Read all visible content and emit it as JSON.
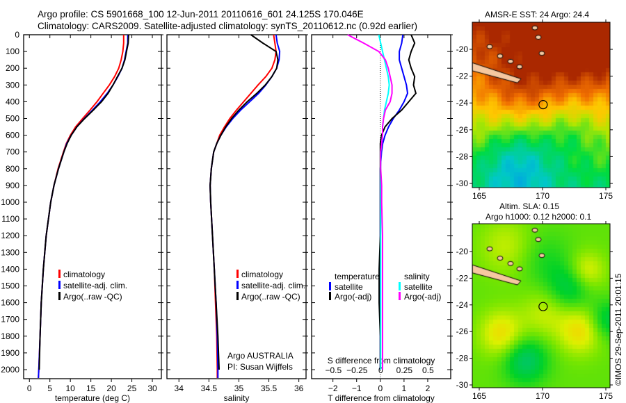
{
  "header": {
    "line1": "Argo profile: CS 5901668_100 12-Jun-2011 20110616_601 24.125S 170.046E",
    "line2": "Climatology: CARS2009. Satellite-adjusted climatology: synTS_20110612.nc (0.92d earlier)"
  },
  "colors": {
    "climatology": "#ff0000",
    "satellite": "#0000ff",
    "argo": "#000000",
    "sal_satellite": "#00ffff",
    "sal_argo": "#ff00ff"
  },
  "chart_data": [
    {
      "type": "line",
      "name": "temperature",
      "xlabel": "temperature (deg C)",
      "xlim": [
        -1.4,
        32.2
      ],
      "ylim": [
        2054,
        0
      ],
      "xticks": [
        0,
        5,
        10,
        15,
        20,
        25,
        30
      ],
      "yticks": [
        0,
        100,
        200,
        300,
        400,
        500,
        600,
        700,
        800,
        900,
        1000,
        1100,
        1200,
        1300,
        1400,
        1500,
        1600,
        1700,
        1800,
        1900,
        2000
      ],
      "depth": [
        0,
        50,
        100,
        150,
        200,
        250,
        300,
        350,
        400,
        450,
        500,
        550,
        600,
        650,
        700,
        800,
        900,
        1000,
        1200,
        1400,
        1600,
        1800,
        2000,
        2050
      ],
      "series": [
        {
          "name": "climatology",
          "color": "#ff0000",
          "values": [
            23.0,
            23.0,
            22.8,
            22.4,
            21.8,
            20.8,
            19.5,
            18.0,
            16.5,
            14.8,
            13.0,
            11.3,
            10.0,
            9.0,
            8.3,
            7.0,
            6.0,
            5.2,
            4.1,
            3.4,
            2.9,
            2.6,
            2.3,
            2.2
          ]
        },
        {
          "name": "satellite-adj. clim.",
          "color": "#0000ff",
          "values": [
            24.0,
            24.0,
            23.6,
            23.2,
            22.6,
            21.6,
            20.4,
            19.0,
            17.3,
            15.4,
            13.4,
            11.6,
            10.2,
            9.1,
            8.4,
            7.1,
            6.0,
            5.2,
            4.1,
            3.4,
            2.9,
            2.6,
            2.3,
            2.2
          ]
        },
        {
          "name": "Argo(..raw -QC)",
          "color": "#000000",
          "values": [
            24.2,
            24.1,
            23.7,
            23.3,
            22.6,
            21.5,
            20.4,
            19.2,
            17.6,
            15.6,
            13.5,
            11.6,
            10.2,
            9.2,
            8.4,
            7.1,
            6.0,
            5.2,
            4.1,
            3.4,
            2.9,
            2.6,
            2.4,
            null
          ]
        }
      ],
      "legend": [
        "climatology",
        "satellite-adj. clim.",
        "Argo(..raw -QC)"
      ]
    },
    {
      "type": "line",
      "name": "salinity",
      "xlabel": "salinity",
      "xlim": [
        33.8,
        36.12
      ],
      "ylim": [
        2054,
        0
      ],
      "xticks": [
        34,
        34.5,
        35,
        35.5,
        36
      ],
      "depth": [
        0,
        50,
        100,
        150,
        200,
        250,
        300,
        350,
        400,
        450,
        500,
        550,
        600,
        650,
        700,
        800,
        900,
        1000,
        1200,
        1400,
        1600,
        1800,
        2000,
        2050
      ],
      "series": [
        {
          "name": "climatology",
          "color": "#ff0000",
          "values": [
            35.58,
            35.6,
            35.62,
            35.6,
            35.55,
            35.45,
            35.32,
            35.2,
            35.08,
            34.96,
            34.85,
            34.76,
            34.68,
            34.63,
            34.58,
            34.54,
            34.52,
            34.53,
            34.56,
            34.59,
            34.61,
            34.63,
            34.64,
            34.64
          ]
        },
        {
          "name": "satellite-adj. clim.",
          "color": "#0000ff",
          "values": [
            35.62,
            35.64,
            35.68,
            35.67,
            35.63,
            35.55,
            35.45,
            35.33,
            35.18,
            35.03,
            34.9,
            34.79,
            34.7,
            34.63,
            34.58,
            34.54,
            34.52,
            34.53,
            34.56,
            34.59,
            34.62,
            34.64,
            34.65,
            34.65
          ]
        },
        {
          "name": "Argo(..raw -QC)",
          "color": "#000000",
          "values": [
            35.2,
            35.4,
            35.62,
            35.65,
            35.63,
            35.55,
            35.44,
            35.3,
            35.14,
            35.0,
            34.88,
            34.78,
            34.7,
            34.63,
            34.58,
            34.54,
            34.52,
            34.53,
            34.56,
            34.59,
            34.62,
            34.65,
            34.67,
            null
          ]
        }
      ],
      "legend": [
        "climatology",
        "satellite-adj. clim.",
        "Argo(..raw -QC)"
      ],
      "annotation": [
        "Argo AUSTRALIA",
        "PI: Susan Wijffels"
      ]
    },
    {
      "type": "line",
      "name": "differences",
      "xlabel": "T difference from climatology",
      "x2label": "S difference from climatology",
      "xlim": [
        -2.9,
        2.97
      ],
      "x2lim": [
        -0.73,
        0.74
      ],
      "ylim": [
        2054,
        0
      ],
      "xticks": [
        -2,
        -1,
        0,
        1,
        2
      ],
      "x2ticks": [
        -0.5,
        -0.25,
        0,
        0.25,
        0.5
      ],
      "depth": [
        0,
        50,
        100,
        150,
        200,
        250,
        300,
        350,
        400,
        450,
        500,
        550,
        600,
        650,
        700,
        800,
        900,
        1000,
        1200,
        1400,
        1600,
        1800,
        2000
      ],
      "series": [
        {
          "name": "temperature satellite",
          "axis": "T",
          "color": "#0000ff",
          "values": [
            0.95,
            0.9,
            0.8,
            0.8,
            0.9,
            1.0,
            1.1,
            1.15,
            1.0,
            0.8,
            0.55,
            0.35,
            0.2,
            0.1,
            0.05,
            0.0,
            0.0,
            0.0,
            0.0,
            0.0,
            0.0,
            0.0,
            0.0
          ]
        },
        {
          "name": "temperature Argo(-adj)",
          "axis": "T",
          "color": "#000000",
          "values": [
            1.3,
            1.45,
            1.3,
            1.2,
            1.3,
            1.45,
            1.4,
            1.5,
            1.2,
            0.9,
            0.5,
            0.2,
            0.05,
            0.0,
            0.0,
            0.0,
            0.0,
            0.0,
            0.0,
            -0.05,
            -0.05,
            0.0,
            0.0
          ]
        },
        {
          "name": "salinity satellite",
          "axis": "S",
          "color": "#00ffff",
          "values": [
            -0.02,
            0.0,
            0.02,
            0.04,
            0.06,
            0.08,
            0.09,
            0.08,
            0.06,
            0.04,
            0.03,
            0.02,
            0.02,
            0.01,
            0.0,
            0.0,
            0.0,
            0.0,
            0.0,
            0.0,
            0.0,
            0.0,
            0.0
          ]
        },
        {
          "name": "salinity Argo(-adj)",
          "axis": "S",
          "color": "#ff00ff",
          "values": [
            -0.35,
            -0.18,
            -0.02,
            0.05,
            0.08,
            0.1,
            0.12,
            0.12,
            0.1,
            0.05,
            0.03,
            0.02,
            0.02,
            0.01,
            0.0,
            0.0,
            0.01,
            0.01,
            0.02,
            0.02,
            0.02,
            0.02,
            0.02
          ]
        }
      ],
      "legend": {
        "temperature_title": "temperature",
        "salinity_title": "salinity",
        "items": [
          "satellite",
          "Argo(-adj)",
          "satellite",
          "Argo(-adj)"
        ]
      }
    }
  ],
  "maps": [
    {
      "title": "AMSR-E SST: 24 Argo: 24.4",
      "xticks": [
        "165",
        "170",
        "175"
      ],
      "yticks": [
        "-20",
        "-22",
        "-24",
        "-26",
        "-28",
        "-30"
      ],
      "float_lon": 170.046,
      "float_lat": -24.125
    },
    {
      "title1": "Altim. SLA: 0.15",
      "title2": "Argo h1000: 0.12 h2000: 0.1",
      "xticks": [
        "165",
        "170",
        "175"
      ],
      "yticks": [
        "-20",
        "-22",
        "-24",
        "-26",
        "-28",
        "-30"
      ],
      "float_lon": 170.046,
      "float_lat": -24.125
    }
  ],
  "credit": "©IMOS 29-Sep-2011 20:01:15"
}
